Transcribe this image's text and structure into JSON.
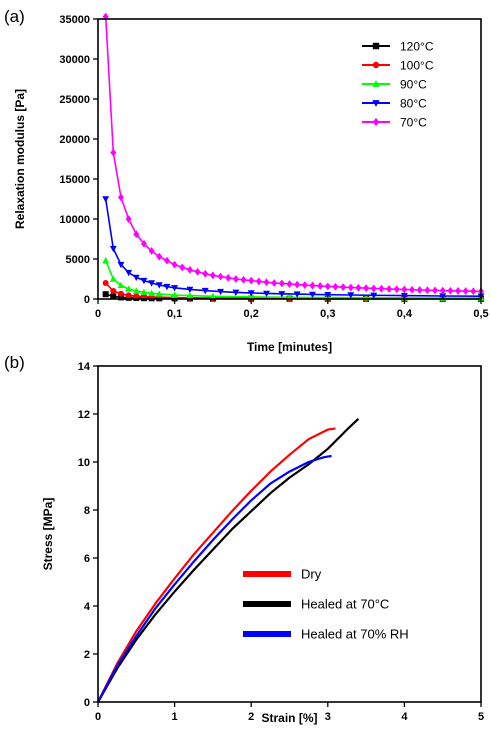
{
  "chart_data": [
    {
      "type": "scatter",
      "panel_label": "(a)",
      "title": "",
      "xlabel": "Time [minutes]",
      "ylabel": "Relaxation modulus [Pa]",
      "xlim": [
        0,
        0.5
      ],
      "ylim": [
        0,
        35000
      ],
      "xticks": [
        {
          "v": 0,
          "label": "0"
        },
        {
          "v": 0.1,
          "label": "0,1"
        },
        {
          "v": 0.2,
          "label": "0,2"
        },
        {
          "v": 0.3,
          "label": "0,3"
        },
        {
          "v": 0.4,
          "label": "0,4"
        },
        {
          "v": 0.5,
          "label": "0,5"
        }
      ],
      "yticks": [
        {
          "v": 0,
          "label": "0"
        },
        {
          "v": 5000,
          "label": "5000"
        },
        {
          "v": 10000,
          "label": "10000"
        },
        {
          "v": 15000,
          "label": "15000"
        },
        {
          "v": 20000,
          "label": "20000"
        },
        {
          "v": 25000,
          "label": "25000"
        },
        {
          "v": 30000,
          "label": "30000"
        },
        {
          "v": 35000,
          "label": "35000"
        }
      ],
      "grid": false,
      "legend_position": "top-right",
      "series": [
        {
          "name": "120°C",
          "color": "#000000",
          "marker": "square",
          "x": [
            0.01,
            0.02,
            0.03,
            0.04,
            0.05,
            0.06,
            0.07,
            0.08,
            0.1,
            0.12,
            0.15,
            0.2,
            0.25,
            0.3,
            0.35,
            0.4,
            0.45,
            0.5
          ],
          "y": [
            600,
            320,
            200,
            150,
            120,
            100,
            90,
            80,
            70,
            60,
            50,
            40,
            35,
            30,
            28,
            25,
            22,
            20
          ]
        },
        {
          "name": "100°C",
          "color": "#ff0000",
          "marker": "circle",
          "x": [
            0.01,
            0.02,
            0.03,
            0.04,
            0.05,
            0.06,
            0.07,
            0.08,
            0.1,
            0.12,
            0.15,
            0.2,
            0.25,
            0.3,
            0.35,
            0.4,
            0.45,
            0.5
          ],
          "y": [
            2000,
            1000,
            650,
            450,
            350,
            290,
            250,
            220,
            180,
            150,
            120,
            90,
            75,
            65,
            55,
            50,
            45,
            40
          ]
        },
        {
          "name": "90°C",
          "color": "#00ff00",
          "marker": "triangle-up",
          "x": [
            0.01,
            0.02,
            0.03,
            0.04,
            0.05,
            0.06,
            0.07,
            0.08,
            0.1,
            0.12,
            0.15,
            0.2,
            0.25,
            0.3,
            0.35,
            0.4,
            0.45,
            0.5
          ],
          "y": [
            4800,
            2500,
            1700,
            1250,
            1000,
            850,
            720,
            630,
            500,
            420,
            340,
            260,
            210,
            180,
            160,
            140,
            125,
            115
          ]
        },
        {
          "name": "80°C",
          "color": "#0000ff",
          "marker": "triangle-down",
          "x": [
            0.01,
            0.02,
            0.03,
            0.04,
            0.05,
            0.06,
            0.07,
            0.08,
            0.09,
            0.1,
            0.12,
            0.14,
            0.16,
            0.18,
            0.2,
            0.22,
            0.24,
            0.26,
            0.28,
            0.3,
            0.33,
            0.36,
            0.4,
            0.45,
            0.5
          ],
          "y": [
            12500,
            6300,
            4300,
            3300,
            2700,
            2300,
            2000,
            1750,
            1550,
            1400,
            1200,
            1050,
            930,
            830,
            760,
            700,
            650,
            610,
            570,
            540,
            500,
            460,
            420,
            380,
            350
          ]
        },
        {
          "name": "70°C",
          "color": "#ff00ff",
          "marker": "diamond",
          "x": [
            0.01,
            0.02,
            0.03,
            0.04,
            0.05,
            0.06,
            0.07,
            0.08,
            0.09,
            0.1,
            0.11,
            0.12,
            0.13,
            0.14,
            0.15,
            0.16,
            0.17,
            0.18,
            0.19,
            0.2,
            0.21,
            0.22,
            0.23,
            0.24,
            0.25,
            0.26,
            0.27,
            0.28,
            0.29,
            0.3,
            0.31,
            0.32,
            0.33,
            0.34,
            0.35,
            0.36,
            0.37,
            0.38,
            0.39,
            0.4,
            0.41,
            0.42,
            0.43,
            0.44,
            0.45,
            0.46,
            0.47,
            0.48,
            0.49,
            0.5
          ],
          "y": [
            35300,
            18300,
            12700,
            10000,
            8100,
            6900,
            6000,
            5300,
            4800,
            4300,
            3950,
            3650,
            3400,
            3150,
            2950,
            2800,
            2650,
            2500,
            2400,
            2300,
            2200,
            2100,
            2000,
            1950,
            1870,
            1800,
            1740,
            1680,
            1630,
            1580,
            1530,
            1480,
            1440,
            1400,
            1360,
            1320,
            1290,
            1250,
            1220,
            1190,
            1160,
            1130,
            1100,
            1080,
            1050,
            1030,
            1010,
            990,
            970,
            950
          ]
        }
      ]
    },
    {
      "type": "line",
      "panel_label": "(b)",
      "title": "",
      "xlabel": "Strain [%]",
      "ylabel": "Stress [MPa]",
      "xlim": [
        0,
        5
      ],
      "ylim": [
        0,
        14
      ],
      "xticks": [
        {
          "v": 0,
          "label": "0"
        },
        {
          "v": 1,
          "label": "1"
        },
        {
          "v": 2,
          "label": "2"
        },
        {
          "v": 3,
          "label": "3"
        },
        {
          "v": 4,
          "label": "4"
        },
        {
          "v": 5,
          "label": "5"
        }
      ],
      "yticks": [
        {
          "v": 0,
          "label": "0"
        },
        {
          "v": 2,
          "label": "2"
        },
        {
          "v": 4,
          "label": "4"
        },
        {
          "v": 6,
          "label": "6"
        },
        {
          "v": 8,
          "label": "8"
        },
        {
          "v": 10,
          "label": "10"
        },
        {
          "v": 12,
          "label": "12"
        },
        {
          "v": 14,
          "label": "14"
        }
      ],
      "grid": false,
      "legend_position": "bottom-right",
      "series": [
        {
          "name": "Dry",
          "color": "#ff0000",
          "x": [
            0,
            0.25,
            0.5,
            0.75,
            1.0,
            1.25,
            1.5,
            1.75,
            2.0,
            2.25,
            2.5,
            2.75,
            3.0,
            3.1
          ],
          "y": [
            0,
            1.6,
            2.95,
            4.1,
            5.15,
            6.15,
            7.05,
            7.95,
            8.8,
            9.6,
            10.3,
            10.95,
            11.35,
            11.4
          ]
        },
        {
          "name": "Healed at 70°C",
          "color": "#000000",
          "x": [
            0,
            0.25,
            0.5,
            0.75,
            1.0,
            1.25,
            1.5,
            1.75,
            2.0,
            2.25,
            2.5,
            2.75,
            3.0,
            3.25,
            3.4
          ],
          "y": [
            0,
            1.4,
            2.6,
            3.65,
            4.6,
            5.5,
            6.35,
            7.2,
            7.95,
            8.7,
            9.35,
            9.9,
            10.55,
            11.35,
            11.8
          ]
        },
        {
          "name": "Healed at 70% RH",
          "color": "#0000ff",
          "x": [
            0,
            0.25,
            0.5,
            0.75,
            1.0,
            1.25,
            1.5,
            1.75,
            2.0,
            2.25,
            2.5,
            2.75,
            2.95,
            3.05
          ],
          "y": [
            0,
            1.5,
            2.75,
            3.9,
            4.9,
            5.85,
            6.75,
            7.6,
            8.4,
            9.1,
            9.6,
            10.0,
            10.2,
            10.25
          ]
        }
      ]
    }
  ]
}
